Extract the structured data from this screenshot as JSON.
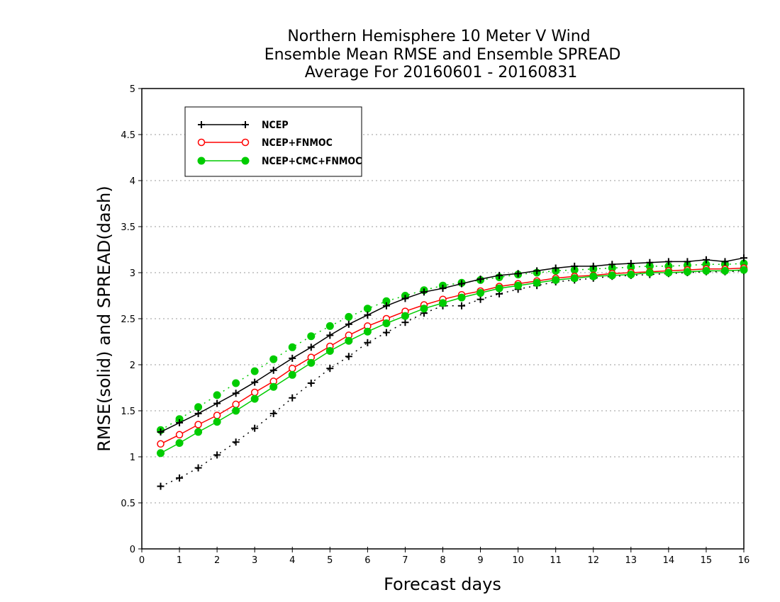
{
  "chart_data": {
    "type": "line",
    "title": [
      "Northern Hemisphere 10 Meter V Wind",
      "Ensemble Mean RMSE and Ensemble SPREAD",
      "Average For 20160601 - 20160831"
    ],
    "xlabel": "Forecast days",
    "ylabel": "RMSE(solid) and SPREAD(dash)",
    "xlim": [
      0,
      16
    ],
    "ylim": [
      0,
      5
    ],
    "x_ticks": [
      "0",
      "1",
      "2",
      "3",
      "4",
      "5",
      "6",
      "7",
      "8",
      "9",
      "10",
      "11",
      "12",
      "13",
      "14",
      "15",
      "16"
    ],
    "y_ticks": [
      "0",
      "0.5",
      "1",
      "1.5",
      "2",
      "2.5",
      "3",
      "3.5",
      "4",
      "4.5",
      "5"
    ],
    "grid": true,
    "legend_position": "top-left",
    "x": [
      0.5,
      1,
      1.5,
      2,
      2.5,
      3,
      3.5,
      4,
      4.5,
      5,
      5.5,
      6,
      6.5,
      7,
      7.5,
      8,
      8.5,
      9,
      9.5,
      10,
      10.5,
      11,
      11.5,
      12,
      12.5,
      13,
      13.5,
      14,
      14.5,
      15,
      15.5,
      16
    ],
    "series": [
      {
        "name": "NCEP",
        "color": "#000000",
        "marker": "plus",
        "rmse": [
          1.27,
          1.37,
          1.47,
          1.58,
          1.69,
          1.81,
          1.94,
          2.07,
          2.19,
          2.32,
          2.44,
          2.54,
          2.64,
          2.72,
          2.79,
          2.83,
          2.88,
          2.93,
          2.97,
          2.99,
          3.02,
          3.05,
          3.07,
          3.07,
          3.09,
          3.1,
          3.11,
          3.12,
          3.12,
          3.14,
          3.12,
          3.16
        ],
        "spread": [
          0.68,
          0.77,
          0.88,
          1.02,
          1.16,
          1.31,
          1.47,
          1.64,
          1.8,
          1.96,
          2.09,
          2.24,
          2.35,
          2.46,
          2.56,
          2.64,
          2.64,
          2.71,
          2.77,
          2.82,
          2.86,
          2.9,
          2.92,
          2.94,
          2.96,
          2.97,
          2.98,
          2.99,
          3.0,
          3.01,
          3.01,
          3.02
        ]
      },
      {
        "name": "NCEP+FNMOC",
        "color": "#ff0000",
        "marker": "open-circle",
        "rmse": [
          1.14,
          1.24,
          1.35,
          1.45,
          1.57,
          1.7,
          1.82,
          1.96,
          2.08,
          2.2,
          2.32,
          2.42,
          2.5,
          2.58,
          2.65,
          2.71,
          2.76,
          2.8,
          2.85,
          2.88,
          2.91,
          2.94,
          2.96,
          2.97,
          2.99,
          3.0,
          3.01,
          3.02,
          3.03,
          3.04,
          3.04,
          3.05
        ]
      },
      {
        "name": "NCEP+CMC+FNMOC",
        "color": "#00cc00",
        "marker": "filled-circle",
        "rmse": [
          1.04,
          1.15,
          1.27,
          1.38,
          1.5,
          1.63,
          1.76,
          1.89,
          2.02,
          2.15,
          2.26,
          2.36,
          2.45,
          2.53,
          2.61,
          2.67,
          2.73,
          2.78,
          2.83,
          2.86,
          2.89,
          2.92,
          2.94,
          2.96,
          2.97,
          2.98,
          3.0,
          3.0,
          3.01,
          3.02,
          3.02,
          3.03
        ],
        "spread": [
          1.29,
          1.41,
          1.54,
          1.67,
          1.8,
          1.93,
          2.06,
          2.19,
          2.31,
          2.42,
          2.52,
          2.61,
          2.69,
          2.75,
          2.81,
          2.86,
          2.89,
          2.92,
          2.95,
          2.98,
          3.0,
          3.02,
          3.03,
          3.04,
          3.05,
          3.06,
          3.07,
          3.07,
          3.08,
          3.09,
          3.09,
          3.1
        ]
      }
    ]
  }
}
